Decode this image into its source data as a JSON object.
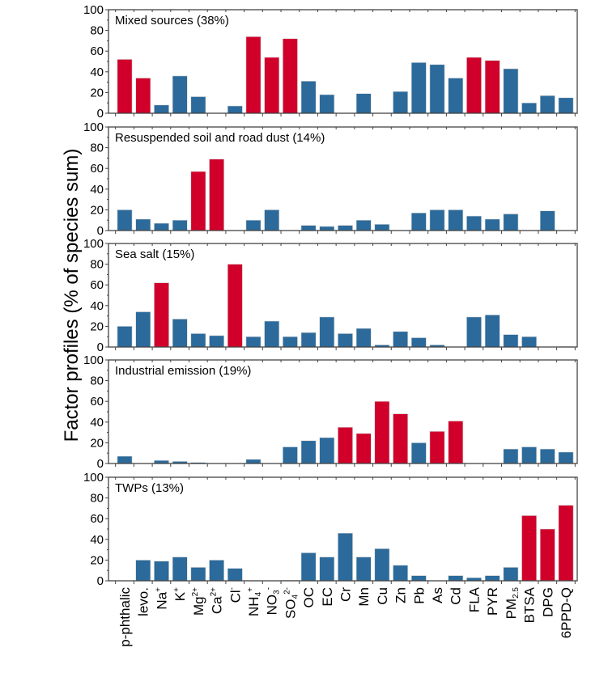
{
  "chart_data": {
    "type": "bar",
    "ylabel": "Factor profiles (% of species sum)",
    "xlabel": "",
    "ylim": [
      0,
      100
    ],
    "yticks": [
      0,
      20,
      40,
      60,
      80,
      100
    ],
    "grid": false,
    "colors": {
      "normal": "#2b6a9b",
      "highlight": "#d0002a"
    },
    "categories": [
      {
        "base": "p-phthalic",
        "sub": "",
        "sup": ""
      },
      {
        "base": "levo.",
        "sub": "",
        "sup": ""
      },
      {
        "base": "Na",
        "sub": "",
        "sup": "+"
      },
      {
        "base": "K",
        "sub": "",
        "sup": "+"
      },
      {
        "base": "Mg",
        "sub": "",
        "sup": "2+"
      },
      {
        "base": "Ca",
        "sub": "",
        "sup": "2+"
      },
      {
        "base": "Cl",
        "sub": "",
        "sup": "-"
      },
      {
        "base": "NH",
        "sub": "4",
        "sup": "+"
      },
      {
        "base": "NO",
        "sub": "3",
        "sup": "-"
      },
      {
        "base": "SO",
        "sub": "4",
        "sup": "2-"
      },
      {
        "base": "OC",
        "sub": "",
        "sup": ""
      },
      {
        "base": "EC",
        "sub": "",
        "sup": ""
      },
      {
        "base": "Cr",
        "sub": "",
        "sup": ""
      },
      {
        "base": "Mn",
        "sub": "",
        "sup": ""
      },
      {
        "base": "Cu",
        "sub": "",
        "sup": ""
      },
      {
        "base": "Zn",
        "sub": "",
        "sup": ""
      },
      {
        "base": "Pb",
        "sub": "",
        "sup": ""
      },
      {
        "base": "As",
        "sub": "",
        "sup": ""
      },
      {
        "base": "Cd",
        "sub": "",
        "sup": ""
      },
      {
        "base": "FLA",
        "sub": "",
        "sup": ""
      },
      {
        "base": "PYR",
        "sub": "",
        "sup": ""
      },
      {
        "base": "PM",
        "sub": "2.5",
        "sup": ""
      },
      {
        "base": "BTSA",
        "sub": "",
        "sup": ""
      },
      {
        "base": "DPG",
        "sub": "",
        "sup": ""
      },
      {
        "base": "6PPD-Q",
        "sub": "",
        "sup": ""
      }
    ],
    "panels": [
      {
        "title": "Mixed sources (38%)",
        "values": [
          52,
          34,
          8,
          36,
          16,
          0,
          7,
          74,
          54,
          72,
          31,
          18,
          0,
          19,
          0,
          21,
          49,
          47,
          34,
          54,
          51,
          43,
          10,
          17,
          15
        ],
        "highlight": [
          true,
          true,
          false,
          false,
          false,
          false,
          false,
          true,
          true,
          true,
          false,
          false,
          false,
          false,
          false,
          false,
          false,
          false,
          false,
          true,
          true,
          false,
          false,
          false,
          false
        ]
      },
      {
        "title": "Resuspended soil and road dust (14%)",
        "values": [
          20,
          11,
          7,
          10,
          57,
          69,
          0,
          10,
          20,
          0,
          5,
          4,
          5,
          10,
          6,
          0,
          17,
          20,
          20,
          14,
          11,
          16,
          0,
          19,
          0
        ],
        "highlight": [
          false,
          false,
          false,
          false,
          true,
          true,
          false,
          false,
          false,
          false,
          false,
          false,
          false,
          false,
          false,
          false,
          false,
          false,
          false,
          false,
          false,
          false,
          false,
          false,
          false
        ]
      },
      {
        "title": "Sea salt (15%)",
        "values": [
          20,
          34,
          62,
          27,
          13,
          11,
          80,
          10,
          25,
          10,
          14,
          29,
          13,
          18,
          2,
          15,
          9,
          2,
          0,
          29,
          31,
          12,
          10,
          0,
          0.5
        ],
        "highlight": [
          false,
          false,
          true,
          false,
          false,
          false,
          true,
          false,
          false,
          false,
          false,
          false,
          false,
          false,
          false,
          false,
          false,
          false,
          false,
          false,
          false,
          false,
          false,
          false,
          false
        ]
      },
      {
        "title": "Industrial emission (19%)",
        "values": [
          7,
          0,
          3,
          2,
          1,
          0,
          0,
          4,
          0,
          16,
          22,
          25,
          35,
          29,
          60,
          48,
          20,
          31,
          41,
          0,
          0,
          14,
          16,
          14,
          11
        ],
        "highlight": [
          false,
          false,
          false,
          false,
          false,
          false,
          false,
          false,
          false,
          false,
          false,
          false,
          true,
          true,
          true,
          true,
          false,
          true,
          true,
          false,
          false,
          false,
          false,
          false,
          false
        ]
      },
      {
        "title": "TWPs (13%)",
        "values": [
          0,
          20,
          19,
          23,
          13,
          20,
          12,
          0.3,
          0,
          0.5,
          27,
          23,
          46,
          23,
          31,
          15,
          5,
          0,
          5,
          3,
          5,
          13,
          63,
          50,
          73
        ],
        "highlight": [
          false,
          false,
          false,
          false,
          false,
          false,
          false,
          false,
          false,
          false,
          false,
          false,
          false,
          false,
          false,
          false,
          false,
          false,
          false,
          false,
          false,
          false,
          true,
          true,
          true
        ]
      }
    ]
  }
}
